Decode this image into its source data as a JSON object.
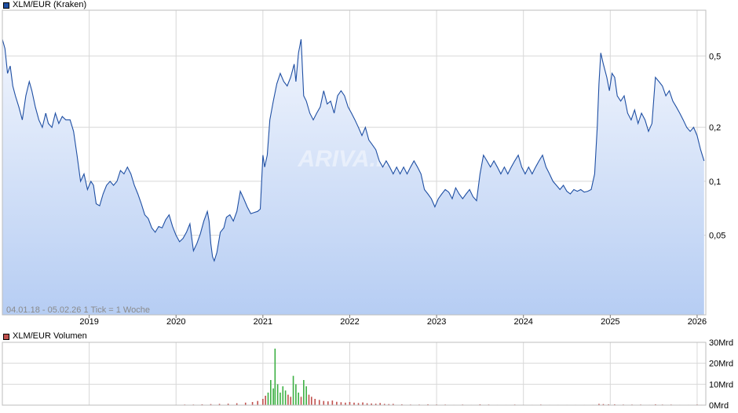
{
  "colors": {
    "price_line": "#1f4fa3",
    "area_top": "#f1f5fd",
    "area_bottom": "#b6cdf3",
    "grid": "#d8d8d8",
    "volume": "#c0504d",
    "volume_peak": "#3cb043",
    "price_swatch": "#1f4fa3",
    "volume_swatch": "#c0504d"
  },
  "price_panel": {
    "legend_label": "XLM/EUR (Kraken)",
    "info_label": "04.01.18 - 05.02.26   1 Tick = 1 Woche",
    "watermark": "ARIVA.DE"
  },
  "volume_panel": {
    "legend_label": "XLM/EUR Volumen"
  },
  "chart_data": [
    {
      "type": "area",
      "series": [
        {
          "name": "XLM/EUR (Kraken)"
        }
      ],
      "y_scale": "log",
      "ylim": [
        0.018,
        0.9
      ],
      "xlim": [
        2018.0,
        2026.1
      ],
      "x_ticks": [
        {
          "value": 2019,
          "label": "2019"
        },
        {
          "value": 2020,
          "label": "2020"
        },
        {
          "value": 2021,
          "label": "2021"
        },
        {
          "value": 2022,
          "label": "2022"
        },
        {
          "value": 2023,
          "label": "2023"
        },
        {
          "value": 2024,
          "label": "2024"
        },
        {
          "value": 2025,
          "label": "2025"
        },
        {
          "value": 2026,
          "label": "2026"
        }
      ],
      "y_ticks": [
        {
          "value": 0.5,
          "label": "0,5"
        },
        {
          "value": 0.2,
          "label": "0,2"
        },
        {
          "value": 0.1,
          "label": "0,1"
        },
        {
          "value": 0.05,
          "label": "0,05"
        }
      ],
      "grid": true,
      "points": [
        [
          2018.0,
          0.62
        ],
        [
          2018.03,
          0.55
        ],
        [
          2018.06,
          0.4
        ],
        [
          2018.09,
          0.44
        ],
        [
          2018.12,
          0.34
        ],
        [
          2018.15,
          0.3
        ],
        [
          2018.19,
          0.26
        ],
        [
          2018.23,
          0.22
        ],
        [
          2018.27,
          0.3
        ],
        [
          2018.31,
          0.36
        ],
        [
          2018.34,
          0.32
        ],
        [
          2018.38,
          0.26
        ],
        [
          2018.42,
          0.22
        ],
        [
          2018.46,
          0.2
        ],
        [
          2018.5,
          0.24
        ],
        [
          2018.53,
          0.21
        ],
        [
          2018.57,
          0.2
        ],
        [
          2018.61,
          0.24
        ],
        [
          2018.65,
          0.21
        ],
        [
          2018.69,
          0.23
        ],
        [
          2018.73,
          0.22
        ],
        [
          2018.78,
          0.22
        ],
        [
          2018.82,
          0.19
        ],
        [
          2018.86,
          0.14
        ],
        [
          2018.9,
          0.1
        ],
        [
          2018.94,
          0.11
        ],
        [
          2018.98,
          0.09
        ],
        [
          2019.02,
          0.1
        ],
        [
          2019.05,
          0.095
        ],
        [
          2019.08,
          0.075
        ],
        [
          2019.12,
          0.073
        ],
        [
          2019.16,
          0.085
        ],
        [
          2019.2,
          0.095
        ],
        [
          2019.24,
          0.1
        ],
        [
          2019.28,
          0.095
        ],
        [
          2019.32,
          0.1
        ],
        [
          2019.36,
          0.115
        ],
        [
          2019.4,
          0.11
        ],
        [
          2019.44,
          0.12
        ],
        [
          2019.48,
          0.11
        ],
        [
          2019.52,
          0.095
        ],
        [
          2019.56,
          0.085
        ],
        [
          2019.6,
          0.075
        ],
        [
          2019.64,
          0.065
        ],
        [
          2019.68,
          0.062
        ],
        [
          2019.72,
          0.055
        ],
        [
          2019.76,
          0.052
        ],
        [
          2019.8,
          0.056
        ],
        [
          2019.84,
          0.055
        ],
        [
          2019.88,
          0.061
        ],
        [
          2019.92,
          0.065
        ],
        [
          2019.96,
          0.056
        ],
        [
          2020.0,
          0.05
        ],
        [
          2020.04,
          0.046
        ],
        [
          2020.08,
          0.048
        ],
        [
          2020.12,
          0.052
        ],
        [
          2020.16,
          0.058
        ],
        [
          2020.2,
          0.041
        ],
        [
          2020.24,
          0.045
        ],
        [
          2020.28,
          0.051
        ],
        [
          2020.32,
          0.06
        ],
        [
          2020.36,
          0.068
        ],
        [
          2020.38,
          0.06
        ],
        [
          2020.4,
          0.045
        ],
        [
          2020.42,
          0.038
        ],
        [
          2020.44,
          0.036
        ],
        [
          2020.47,
          0.04
        ],
        [
          2020.51,
          0.052
        ],
        [
          2020.55,
          0.055
        ],
        [
          2020.58,
          0.063
        ],
        [
          2020.62,
          0.065
        ],
        [
          2020.66,
          0.06
        ],
        [
          2020.7,
          0.068
        ],
        [
          2020.74,
          0.088
        ],
        [
          2020.78,
          0.08
        ],
        [
          2020.82,
          0.072
        ],
        [
          2020.86,
          0.066
        ],
        [
          2020.9,
          0.067
        ],
        [
          2020.94,
          0.068
        ],
        [
          2020.97,
          0.07
        ],
        [
          2021.0,
          0.14
        ],
        [
          2021.02,
          0.12
        ],
        [
          2021.05,
          0.14
        ],
        [
          2021.08,
          0.22
        ],
        [
          2021.12,
          0.28
        ],
        [
          2021.16,
          0.35
        ],
        [
          2021.2,
          0.4
        ],
        [
          2021.24,
          0.36
        ],
        [
          2021.28,
          0.34
        ],
        [
          2021.32,
          0.38
        ],
        [
          2021.36,
          0.45
        ],
        [
          2021.38,
          0.36
        ],
        [
          2021.41,
          0.52
        ],
        [
          2021.44,
          0.62
        ],
        [
          2021.47,
          0.3
        ],
        [
          2021.5,
          0.28
        ],
        [
          2021.54,
          0.24
        ],
        [
          2021.58,
          0.22
        ],
        [
          2021.62,
          0.24
        ],
        [
          2021.66,
          0.26
        ],
        [
          2021.7,
          0.32
        ],
        [
          2021.74,
          0.27
        ],
        [
          2021.78,
          0.28
        ],
        [
          2021.82,
          0.24
        ],
        [
          2021.86,
          0.3
        ],
        [
          2021.9,
          0.32
        ],
        [
          2021.94,
          0.3
        ],
        [
          2021.98,
          0.26
        ],
        [
          2022.02,
          0.24
        ],
        [
          2022.06,
          0.22
        ],
        [
          2022.1,
          0.2
        ],
        [
          2022.14,
          0.18
        ],
        [
          2022.18,
          0.2
        ],
        [
          2022.22,
          0.17
        ],
        [
          2022.26,
          0.16
        ],
        [
          2022.3,
          0.15
        ],
        [
          2022.34,
          0.13
        ],
        [
          2022.38,
          0.12
        ],
        [
          2022.42,
          0.13
        ],
        [
          2022.46,
          0.12
        ],
        [
          2022.5,
          0.11
        ],
        [
          2022.54,
          0.12
        ],
        [
          2022.58,
          0.11
        ],
        [
          2022.62,
          0.12
        ],
        [
          2022.66,
          0.11
        ],
        [
          2022.7,
          0.12
        ],
        [
          2022.74,
          0.13
        ],
        [
          2022.78,
          0.12
        ],
        [
          2022.82,
          0.11
        ],
        [
          2022.86,
          0.09
        ],
        [
          2022.9,
          0.085
        ],
        [
          2022.94,
          0.08
        ],
        [
          2022.98,
          0.072
        ],
        [
          2023.02,
          0.08
        ],
        [
          2023.06,
          0.085
        ],
        [
          2023.1,
          0.09
        ],
        [
          2023.14,
          0.087
        ],
        [
          2023.18,
          0.08
        ],
        [
          2023.22,
          0.092
        ],
        [
          2023.26,
          0.085
        ],
        [
          2023.3,
          0.08
        ],
        [
          2023.34,
          0.085
        ],
        [
          2023.38,
          0.09
        ],
        [
          2023.42,
          0.082
        ],
        [
          2023.46,
          0.078
        ],
        [
          2023.5,
          0.11
        ],
        [
          2023.54,
          0.14
        ],
        [
          2023.58,
          0.13
        ],
        [
          2023.62,
          0.12
        ],
        [
          2023.66,
          0.13
        ],
        [
          2023.7,
          0.12
        ],
        [
          2023.74,
          0.11
        ],
        [
          2023.78,
          0.12
        ],
        [
          2023.82,
          0.11
        ],
        [
          2023.86,
          0.12
        ],
        [
          2023.9,
          0.13
        ],
        [
          2023.94,
          0.14
        ],
        [
          2023.98,
          0.12
        ],
        [
          2024.02,
          0.11
        ],
        [
          2024.06,
          0.12
        ],
        [
          2024.1,
          0.11
        ],
        [
          2024.14,
          0.12
        ],
        [
          2024.18,
          0.13
        ],
        [
          2024.22,
          0.14
        ],
        [
          2024.26,
          0.12
        ],
        [
          2024.3,
          0.11
        ],
        [
          2024.34,
          0.1
        ],
        [
          2024.38,
          0.095
        ],
        [
          2024.42,
          0.09
        ],
        [
          2024.46,
          0.095
        ],
        [
          2024.5,
          0.088
        ],
        [
          2024.54,
          0.085
        ],
        [
          2024.58,
          0.09
        ],
        [
          2024.62,
          0.088
        ],
        [
          2024.66,
          0.09
        ],
        [
          2024.7,
          0.087
        ],
        [
          2024.74,
          0.088
        ],
        [
          2024.78,
          0.09
        ],
        [
          2024.82,
          0.11
        ],
        [
          2024.85,
          0.2
        ],
        [
          2024.87,
          0.35
        ],
        [
          2024.89,
          0.52
        ],
        [
          2024.92,
          0.45
        ],
        [
          2024.96,
          0.38
        ],
        [
          2024.99,
          0.32
        ],
        [
          2025.02,
          0.4
        ],
        [
          2025.05,
          0.38
        ],
        [
          2025.08,
          0.3
        ],
        [
          2025.12,
          0.28
        ],
        [
          2025.16,
          0.3
        ],
        [
          2025.2,
          0.24
        ],
        [
          2025.24,
          0.22
        ],
        [
          2025.28,
          0.25
        ],
        [
          2025.32,
          0.21
        ],
        [
          2025.36,
          0.24
        ],
        [
          2025.4,
          0.22
        ],
        [
          2025.44,
          0.19
        ],
        [
          2025.48,
          0.21
        ],
        [
          2025.52,
          0.38
        ],
        [
          2025.56,
          0.36
        ],
        [
          2025.6,
          0.34
        ],
        [
          2025.64,
          0.3
        ],
        [
          2025.68,
          0.32
        ],
        [
          2025.72,
          0.28
        ],
        [
          2025.76,
          0.26
        ],
        [
          2025.8,
          0.24
        ],
        [
          2025.84,
          0.22
        ],
        [
          2025.88,
          0.2
        ],
        [
          2025.92,
          0.19
        ],
        [
          2025.96,
          0.2
        ],
        [
          2026.0,
          0.18
        ],
        [
          2026.04,
          0.15
        ],
        [
          2026.08,
          0.13
        ]
      ]
    },
    {
      "type": "bar",
      "series": [
        {
          "name": "XLM/EUR Volumen"
        }
      ],
      "ylim": [
        0,
        30
      ],
      "y_unit": "Mrd",
      "y_ticks": [
        {
          "value": 30,
          "label": "30Mrd"
        },
        {
          "value": 20,
          "label": "20Mrd"
        },
        {
          "value": 10,
          "label": "10Mrd"
        },
        {
          "value": 0,
          "label": "0Mrd"
        }
      ],
      "bars": [
        [
          2020.0,
          0.2
        ],
        [
          2020.1,
          0.3
        ],
        [
          2020.2,
          0.3
        ],
        [
          2020.3,
          0.4
        ],
        [
          2020.4,
          0.5
        ],
        [
          2020.5,
          0.6
        ],
        [
          2020.6,
          0.7
        ],
        [
          2020.7,
          0.9
        ],
        [
          2020.8,
          1.2
        ],
        [
          2020.88,
          1.5
        ],
        [
          2020.94,
          2.0
        ],
        [
          2021.0,
          3.0
        ],
        [
          2021.03,
          4.5
        ],
        [
          2021.06,
          6.0
        ],
        [
          2021.09,
          12.0
        ],
        [
          2021.12,
          8.0
        ],
        [
          2021.14,
          27.0
        ],
        [
          2021.17,
          10.0
        ],
        [
          2021.2,
          6.0
        ],
        [
          2021.23,
          9.0
        ],
        [
          2021.26,
          7.0
        ],
        [
          2021.29,
          5.0
        ],
        [
          2021.32,
          4.0
        ],
        [
          2021.35,
          14.0
        ],
        [
          2021.38,
          10.0
        ],
        [
          2021.41,
          6.0
        ],
        [
          2021.44,
          4.0
        ],
        [
          2021.47,
          12.0
        ],
        [
          2021.5,
          9.0
        ],
        [
          2021.53,
          5.0
        ],
        [
          2021.56,
          4.0
        ],
        [
          2021.6,
          3.0
        ],
        [
          2021.65,
          2.5
        ],
        [
          2021.7,
          2.0
        ],
        [
          2021.75,
          1.8
        ],
        [
          2021.8,
          2.2
        ],
        [
          2021.85,
          1.6
        ],
        [
          2021.9,
          1.4
        ],
        [
          2021.95,
          1.2
        ],
        [
          2022.0,
          1.5
        ],
        [
          2022.05,
          1.2
        ],
        [
          2022.1,
          1.0
        ],
        [
          2022.15,
          1.3
        ],
        [
          2022.2,
          0.9
        ],
        [
          2022.25,
          0.8
        ],
        [
          2022.3,
          0.7
        ],
        [
          2022.35,
          1.0
        ],
        [
          2022.4,
          0.6
        ],
        [
          2022.45,
          0.5
        ],
        [
          2022.5,
          0.6
        ],
        [
          2022.6,
          0.4
        ],
        [
          2022.7,
          0.3
        ],
        [
          2022.8,
          0.3
        ],
        [
          2022.9,
          0.4
        ],
        [
          2023.0,
          0.3
        ],
        [
          2023.1,
          0.3
        ],
        [
          2023.2,
          0.2
        ],
        [
          2023.3,
          0.3
        ],
        [
          2023.4,
          0.2
        ],
        [
          2023.5,
          0.4
        ],
        [
          2023.6,
          0.3
        ],
        [
          2023.7,
          0.2
        ],
        [
          2023.8,
          0.2
        ],
        [
          2023.9,
          0.3
        ],
        [
          2024.0,
          0.2
        ],
        [
          2024.1,
          0.2
        ],
        [
          2024.2,
          0.3
        ],
        [
          2024.3,
          0.2
        ],
        [
          2024.4,
          0.2
        ],
        [
          2024.5,
          0.2
        ],
        [
          2024.6,
          0.2
        ],
        [
          2024.7,
          0.2
        ],
        [
          2024.8,
          0.2
        ],
        [
          2024.87,
          0.6
        ],
        [
          2024.92,
          0.5
        ],
        [
          2024.98,
          0.4
        ],
        [
          2025.05,
          0.4
        ],
        [
          2025.15,
          0.3
        ],
        [
          2025.25,
          0.3
        ],
        [
          2025.35,
          0.3
        ],
        [
          2025.45,
          0.2
        ],
        [
          2025.52,
          0.4
        ],
        [
          2025.6,
          0.3
        ],
        [
          2025.7,
          0.3
        ],
        [
          2025.8,
          0.2
        ],
        [
          2025.9,
          0.2
        ],
        [
          2026.0,
          0.3
        ],
        [
          2026.05,
          0.2
        ]
      ]
    }
  ]
}
